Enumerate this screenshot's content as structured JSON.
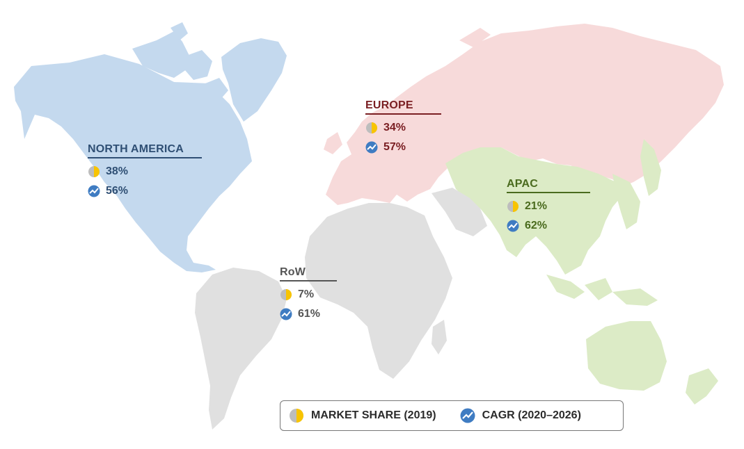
{
  "colors": {
    "north_america": "#c4d9ee",
    "europe": "#f7dada",
    "apac": "#dcebc6",
    "row": "#e0e0e0",
    "north_america_text": "#2f4f74",
    "europe_text": "#7a1e22",
    "apac_text": "#4a6b1e",
    "row_text": "#555555",
    "market_share_icon": "#f8c400",
    "cagr_icon": "#3f7cc2"
  },
  "regions": {
    "north_america": {
      "name": "NORTH AMERICA",
      "market_share": "38%",
      "cagr": "56%"
    },
    "europe": {
      "name": "EUROPE",
      "market_share": "34%",
      "cagr": "57%"
    },
    "apac": {
      "name": "APAC",
      "market_share": "21%",
      "cagr": "62%"
    },
    "row": {
      "name": "RoW",
      "market_share": "7%",
      "cagr": "61%"
    }
  },
  "legend": {
    "market_share_label": "MARKET SHARE (2019)",
    "cagr_label": "CAGR (2020–2026)",
    "market_share_icon": "half-pie-icon",
    "cagr_icon": "trend-line-icon"
  }
}
